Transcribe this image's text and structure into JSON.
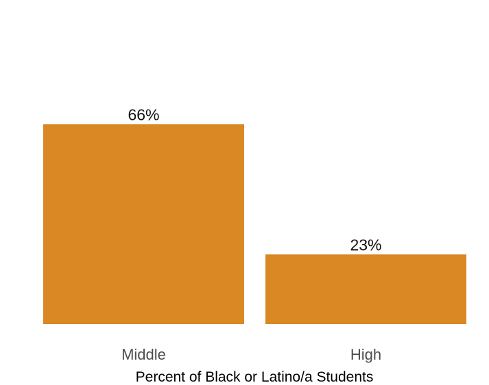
{
  "chart_data": {
    "type": "bar",
    "categories": [
      "Middle",
      "High"
    ],
    "values": [
      66,
      23
    ],
    "value_labels": [
      "66%",
      "23%"
    ],
    "xlabel": "Percent of Black or Latino/a Students",
    "ylabel": "",
    "ylim": [
      0,
      100
    ],
    "grid": false,
    "legend": "none",
    "colors": {
      "bar": "#d98824"
    }
  }
}
